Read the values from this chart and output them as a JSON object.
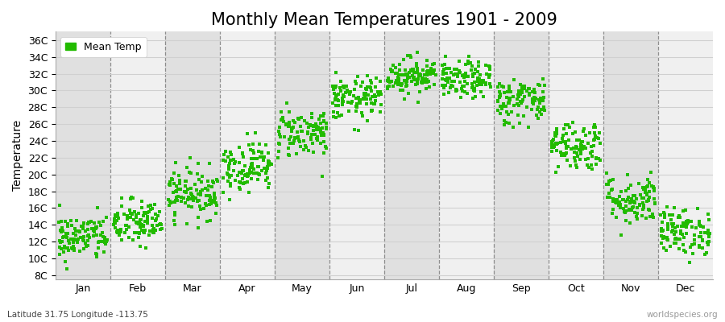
{
  "title": "Monthly Mean Temperatures 1901 - 2009",
  "ylabel": "Temperature",
  "yticks": [
    "8C",
    "10C",
    "12C",
    "14C",
    "16C",
    "18C",
    "20C",
    "22C",
    "24C",
    "26C",
    "28C",
    "30C",
    "32C",
    "34C",
    "36C"
  ],
  "yvalues": [
    8,
    10,
    12,
    14,
    16,
    18,
    20,
    22,
    24,
    26,
    28,
    30,
    32,
    34,
    36
  ],
  "ylim": [
    7.5,
    37
  ],
  "months": [
    "Jan",
    "Feb",
    "Mar",
    "Apr",
    "May",
    "Jun",
    "Jul",
    "Aug",
    "Sep",
    "Oct",
    "Nov",
    "Dec"
  ],
  "month_means": [
    12.5,
    14.2,
    17.8,
    21.0,
    25.0,
    29.0,
    31.8,
    31.2,
    28.8,
    23.5,
    17.0,
    13.2
  ],
  "month_stds": [
    1.4,
    1.4,
    1.5,
    1.5,
    1.5,
    1.3,
    1.1,
    1.1,
    1.4,
    1.5,
    1.5,
    1.4
  ],
  "n_years": 109,
  "dot_color": "#22bb00",
  "dot_size": 8,
  "background_color": "#ebebeb",
  "band_colors": [
    "#e0e0e0",
    "#f0f0f0"
  ],
  "grid_color": "#d0d0d0",
  "dashed_line_color": "#777777",
  "title_fontsize": 15,
  "axis_label_fontsize": 10,
  "tick_fontsize": 9,
  "legend_label": "Mean Temp",
  "subtitle": "Latitude 31.75 Longitude -113.75",
  "watermark": "worldspecies.org",
  "seed": 42
}
